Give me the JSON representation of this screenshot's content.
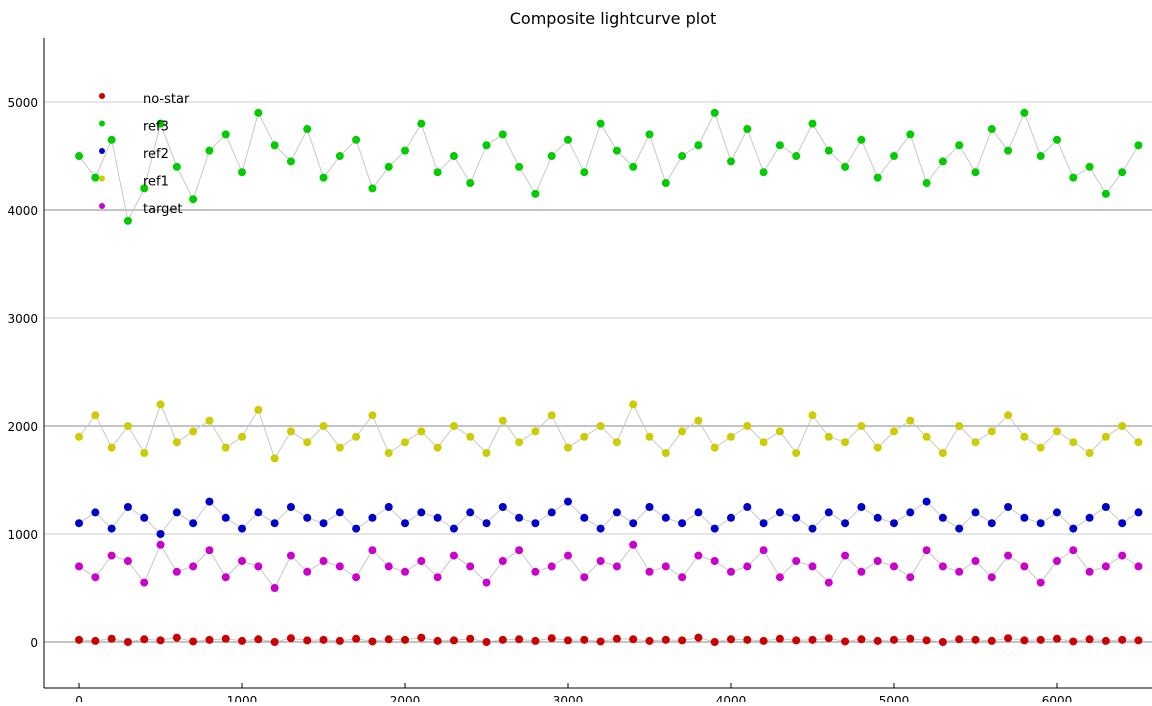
{
  "chart_data": {
    "type": "scatter",
    "title": "Composite lightcurve plot",
    "xlabel": "",
    "ylabel": "",
    "xlim": [
      -215,
      6583
    ],
    "ylim": [
      -426,
      5593
    ],
    "xticks": [
      0,
      1000,
      2000,
      3000,
      4000,
      5000,
      6000
    ],
    "yticks": [
      0,
      1000,
      2000,
      3000,
      4000,
      5000
    ],
    "grid": true,
    "legend_position": "top-left",
    "x_start": 0,
    "x_step": 100,
    "series": [
      {
        "name": "no-star",
        "color": "#cc0000",
        "values": [
          20,
          10,
          30,
          0,
          25,
          15,
          40,
          5,
          20,
          30,
          10,
          25,
          0,
          35,
          15,
          20,
          10,
          30,
          5,
          25,
          20,
          40,
          10,
          15,
          30,
          0,
          20,
          25,
          10,
          35,
          15,
          20,
          5,
          30,
          25,
          10,
          20,
          15,
          40,
          0,
          25,
          20,
          10,
          30,
          15,
          20,
          35,
          5,
          25,
          10,
          20,
          30,
          15,
          0,
          25,
          20,
          10,
          35,
          15,
          20,
          30,
          5,
          25,
          10,
          20,
          15
        ]
      },
      {
        "name": "ref3",
        "color": "#00cc00",
        "values": [
          4500,
          4300,
          4650,
          3900,
          4200,
          4800,
          4400,
          4100,
          4550,
          4700,
          4350,
          4900,
          4600,
          4450,
          4750,
          4300,
          4500,
          4650,
          4200,
          4400,
          4550,
          4800,
          4350,
          4500,
          4250,
          4600,
          4700,
          4400,
          4150,
          4500,
          4650,
          4350,
          4800,
          4550,
          4400,
          4700,
          4250,
          4500,
          4600,
          4900,
          4450,
          4750,
          4350,
          4600,
          4500,
          4800,
          4550,
          4400,
          4650,
          4300,
          4500,
          4700,
          4250,
          4450,
          4600,
          4350,
          4750,
          4550,
          4900,
          4500,
          4650,
          4300,
          4400,
          4150,
          4350,
          4600
        ]
      },
      {
        "name": "ref2",
        "color": "#0000cc",
        "values": [
          1100,
          1200,
          1050,
          1250,
          1150,
          1000,
          1200,
          1100,
          1300,
          1150,
          1050,
          1200,
          1100,
          1250,
          1150,
          1100,
          1200,
          1050,
          1150,
          1250,
          1100,
          1200,
          1150,
          1050,
          1200,
          1100,
          1250,
          1150,
          1100,
          1200,
          1300,
          1150,
          1050,
          1200,
          1100,
          1250,
          1150,
          1100,
          1200,
          1050,
          1150,
          1250,
          1100,
          1200,
          1150,
          1050,
          1200,
          1100,
          1250,
          1150,
          1100,
          1200,
          1300,
          1150,
          1050,
          1200,
          1100,
          1250,
          1150,
          1100,
          1200,
          1050,
          1150,
          1250,
          1100,
          1200
        ]
      },
      {
        "name": "ref1",
        "color": "#cccc00",
        "values": [
          1900,
          2100,
          1800,
          2000,
          1750,
          2200,
          1850,
          1950,
          2050,
          1800,
          1900,
          2150,
          1700,
          1950,
          1850,
          2000,
          1800,
          1900,
          2100,
          1750,
          1850,
          1950,
          1800,
          2000,
          1900,
          1750,
          2050,
          1850,
          1950,
          2100,
          1800,
          1900,
          2000,
          1850,
          2200,
          1900,
          1750,
          1950,
          2050,
          1800,
          1900,
          2000,
          1850,
          1950,
          1750,
          2100,
          1900,
          1850,
          2000,
          1800,
          1950,
          2050,
          1900,
          1750,
          2000,
          1850,
          1950,
          2100,
          1900,
          1800,
          1950,
          1850,
          1750,
          1900,
          2000,
          1850
        ]
      },
      {
        "name": "target",
        "color": "#cc00cc",
        "values": [
          700,
          600,
          800,
          750,
          550,
          900,
          650,
          700,
          850,
          600,
          750,
          700,
          500,
          800,
          650,
          750,
          700,
          600,
          850,
          700,
          650,
          750,
          600,
          800,
          700,
          550,
          750,
          850,
          650,
          700,
          800,
          600,
          750,
          700,
          900,
          650,
          700,
          600,
          800,
          750,
          650,
          700,
          850,
          600,
          750,
          700,
          550,
          800,
          650,
          750,
          700,
          600,
          850,
          700,
          650,
          750,
          600,
          800,
          700,
          550,
          750,
          850,
          650,
          700,
          800,
          700
        ]
      }
    ],
    "legend_order": [
      "no-star",
      "ref3",
      "ref2",
      "ref1",
      "target"
    ]
  }
}
